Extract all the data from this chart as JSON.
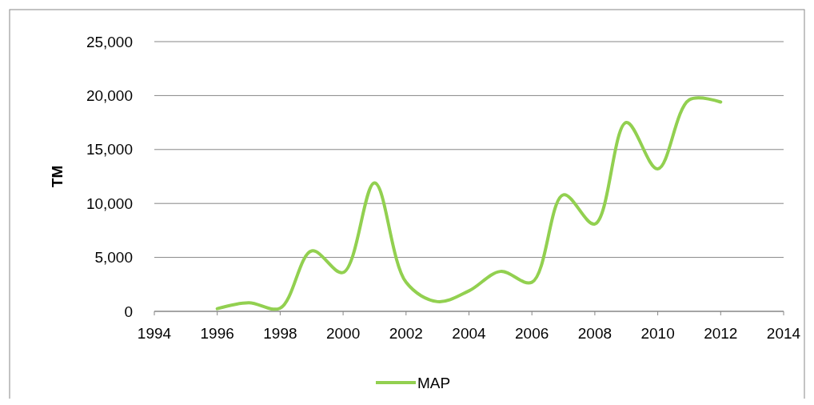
{
  "chart_data": {
    "type": "line",
    "ylabel": "TM",
    "x": [
      1996,
      1997,
      1998,
      1999,
      2000,
      2001,
      2002,
      2003,
      2004,
      2005,
      2006,
      2007,
      2008,
      2009,
      2010,
      2011,
      2012
    ],
    "series": [
      {
        "name": "MAP",
        "color": "#92d050",
        "values": [
          250,
          800,
          300,
          5600,
          3600,
          11900,
          2700,
          900,
          1900,
          3700,
          2700,
          10800,
          8100,
          17500,
          13200,
          19600,
          19400
        ]
      }
    ],
    "xlim": [
      1994,
      2014
    ],
    "xticks": [
      1994,
      1996,
      1998,
      2000,
      2002,
      2004,
      2006,
      2008,
      2010,
      2012,
      2014
    ],
    "ylim": [
      0,
      25000
    ],
    "yticks": [
      {
        "value": 0,
        "label": "0"
      },
      {
        "value": 5000,
        "label": "5,000"
      },
      {
        "value": 10000,
        "label": "10,000"
      },
      {
        "value": 15000,
        "label": "15,000"
      },
      {
        "value": 20000,
        "label": "20,000"
      },
      {
        "value": 25000,
        "label": "25,000"
      }
    ],
    "grid": "y",
    "legend": "bottom",
    "marker": "none",
    "line_style": "solid"
  }
}
